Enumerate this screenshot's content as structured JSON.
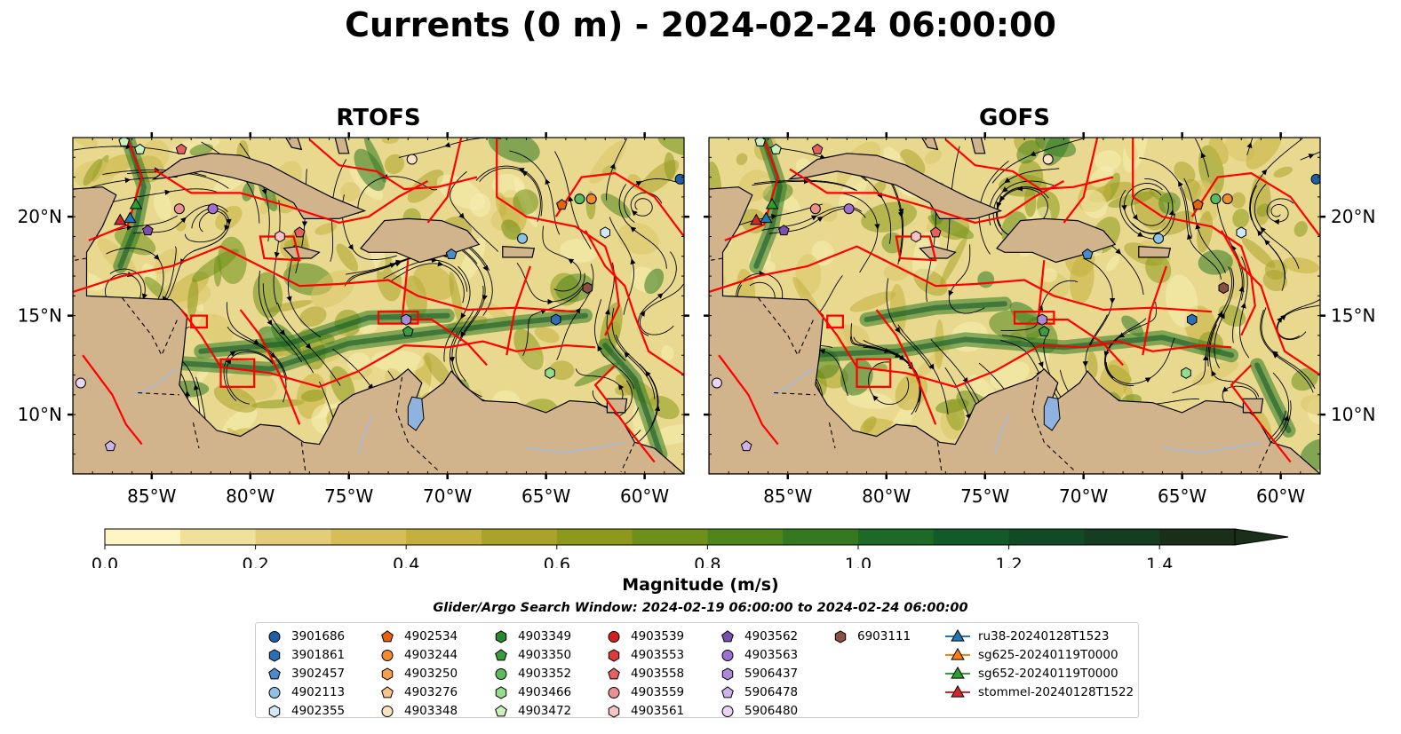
{
  "title": "Currents (0 m) - 2024-02-24 06:00:00",
  "panels": [
    {
      "title": "RTOFS"
    },
    {
      "title": "GOFS"
    }
  ],
  "chart_data": {
    "type": "map",
    "extent": {
      "lon": [
        -89,
        -58
      ],
      "lat": [
        7,
        24
      ]
    },
    "lon_ticks": [
      -85,
      -80,
      -75,
      -70,
      -65,
      -60
    ],
    "lon_tick_labels": [
      "85°W",
      "80°W",
      "75°W",
      "70°W",
      "65°W",
      "60°W"
    ],
    "lat_ticks": [
      10,
      15,
      20
    ],
    "lat_tick_labels": [
      "10°N",
      "15°N",
      "20°N"
    ],
    "colorbar": {
      "label": "Magnitude (m/s)",
      "range": [
        0,
        1.5
      ],
      "extend": "max",
      "ticks": [
        0.0,
        0.2,
        0.4,
        0.6,
        0.8,
        1.0,
        1.2,
        1.4
      ],
      "tick_labels": [
        "0.0",
        "0.2",
        "0.4",
        "0.6",
        "0.8",
        "1.0",
        "1.2",
        "1.4"
      ],
      "colors": [
        "#fdf6c4",
        "#efe19a",
        "#e3cd7a",
        "#d5bd57",
        "#c4b03e",
        "#aaa32a",
        "#8c991c",
        "#6e9018",
        "#4f851b",
        "#34791f",
        "#1c6a26",
        "#135a2a",
        "#134a26",
        "#163d21",
        "#1a2f1a"
      ]
    },
    "search_window": "Glider/Argo Search Window: 2024-02-19 06:00:00 to 2024-02-24 06:00:00",
    "legend": [
      {
        "label": "3901686",
        "marker": "circle",
        "color": "#1f5fa8"
      },
      {
        "label": "3901861",
        "marker": "hexagon",
        "color": "#2b70b4"
      },
      {
        "label": "3902457",
        "marker": "pentagon",
        "color": "#4a8ccb"
      },
      {
        "label": "4902113",
        "marker": "circle",
        "color": "#8cc1e8"
      },
      {
        "label": "4902355",
        "marker": "hexagon",
        "color": "#d3e8f6"
      },
      {
        "label": "4902534",
        "marker": "pentagon",
        "color": "#e8620e"
      },
      {
        "label": "4903244",
        "marker": "circle",
        "color": "#f08c2a"
      },
      {
        "label": "4903250",
        "marker": "hexagon",
        "color": "#f5a04c"
      },
      {
        "label": "4903276",
        "marker": "pentagon",
        "color": "#f9c48c"
      },
      {
        "label": "4903348",
        "marker": "circle",
        "color": "#fde3c2"
      },
      {
        "label": "4903349",
        "marker": "hexagon",
        "color": "#2a8a2a"
      },
      {
        "label": "4903350",
        "marker": "pentagon",
        "color": "#3a9c3a"
      },
      {
        "label": "4903352",
        "marker": "circle",
        "color": "#5cbc5c"
      },
      {
        "label": "4903466",
        "marker": "hexagon",
        "color": "#93dd8b"
      },
      {
        "label": "4903472",
        "marker": "pentagon",
        "color": "#c8f2bd"
      },
      {
        "label": "4903539",
        "marker": "circle",
        "color": "#d62020"
      },
      {
        "label": "4903553",
        "marker": "hexagon",
        "color": "#de3a3a"
      },
      {
        "label": "4903558",
        "marker": "pentagon",
        "color": "#e56060"
      },
      {
        "label": "4903559",
        "marker": "circle",
        "color": "#ef9090"
      },
      {
        "label": "4903561",
        "marker": "hexagon",
        "color": "#f7c4c4"
      },
      {
        "label": "4903562",
        "marker": "pentagon",
        "color": "#7b4fb0"
      },
      {
        "label": "4903563",
        "marker": "circle",
        "color": "#9d6fd0"
      },
      {
        "label": "5906437",
        "marker": "hexagon",
        "color": "#ad8ad8"
      },
      {
        "label": "5906478",
        "marker": "pentagon",
        "color": "#cdb3ea"
      },
      {
        "label": "5906480",
        "marker": "circle",
        "color": "#ead5f6"
      },
      {
        "label": "6903111",
        "marker": "hexagon",
        "color": "#8c5040"
      },
      {
        "label": "ru38-20240128T1523",
        "marker": "triangle",
        "color": "#1f77b4"
      },
      {
        "label": "sg625-20240119T0000",
        "marker": "triangle",
        "color": "#ff7f0e"
      },
      {
        "label": "sg652-20240119T0000",
        "marker": "triangle",
        "color": "#2ca02c"
      },
      {
        "label": "stommel-20240128T1522",
        "marker": "triangle",
        "color": "#d62728"
      }
    ],
    "platforms": [
      {
        "label": "4903472",
        "lon": -86.4,
        "lat": 23.8
      },
      {
        "label": "4903472",
        "lon": -85.6,
        "lat": 23.4
      },
      {
        "label": "4903558",
        "lon": -83.5,
        "lat": 23.4
      },
      {
        "label": "4903348",
        "lon": -71.8,
        "lat": 22.9
      },
      {
        "label": "3901686",
        "lon": -58.2,
        "lat": 21.9
      },
      {
        "label": "4902534",
        "lon": -64.2,
        "lat": 20.6
      },
      {
        "label": "4903352",
        "lon": -63.3,
        "lat": 20.9
      },
      {
        "label": "4903244",
        "lon": -62.7,
        "lat": 20.9
      },
      {
        "label": "4903559",
        "lon": -83.6,
        "lat": 20.4
      },
      {
        "label": "4903563",
        "lon": -81.9,
        "lat": 20.4
      },
      {
        "label": "4903561",
        "lon": -78.5,
        "lat": 19.0
      },
      {
        "label": "4903558",
        "lon": -77.5,
        "lat": 19.2
      },
      {
        "label": "4903562",
        "lon": -85.2,
        "lat": 19.3
      },
      {
        "label": "4902113",
        "lon": -66.2,
        "lat": 18.9
      },
      {
        "label": "4902355",
        "lon": -62.0,
        "lat": 19.2
      },
      {
        "label": "3902457",
        "lon": -69.8,
        "lat": 18.1
      },
      {
        "label": "6903111",
        "lon": -62.9,
        "lat": 16.4
      },
      {
        "label": "5906437",
        "lon": -72.1,
        "lat": 14.8
      },
      {
        "label": "4903350",
        "lon": -72.0,
        "lat": 14.2
      },
      {
        "label": "3901861",
        "lon": -64.5,
        "lat": 14.8
      },
      {
        "label": "4903466",
        "lon": -64.8,
        "lat": 12.1
      },
      {
        "label": "5906480",
        "lon": -88.6,
        "lat": 11.6
      },
      {
        "label": "5906478",
        "lon": -87.1,
        "lat": 8.4
      },
      {
        "label": "ru38-20240128T1523",
        "lon": -86.1,
        "lat": 19.9
      },
      {
        "label": "sg652-20240119T0000",
        "lon": -85.8,
        "lat": 20.6
      },
      {
        "label": "stommel-20240128T1522",
        "lon": -86.6,
        "lat": 19.8
      }
    ]
  }
}
